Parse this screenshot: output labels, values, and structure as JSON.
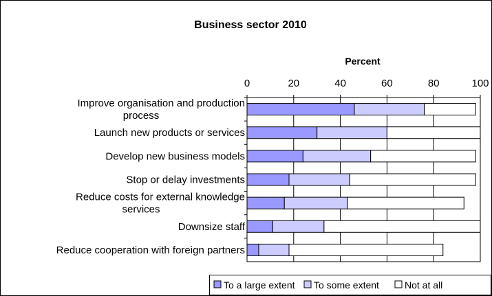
{
  "chart_data": {
    "type": "bar",
    "orientation": "horizontal",
    "stacked": true,
    "title": "Business sector 2010",
    "xlabel": "Percent",
    "ylabel": "",
    "xlim": [
      0,
      100
    ],
    "xticks": [
      0,
      20,
      40,
      60,
      80,
      100
    ],
    "grid": true,
    "legend_position": "bottom-right",
    "categories": [
      "Improve organisation and production process",
      "Launch new products or services",
      "Develop new business models",
      "Stop or delay investments",
      "Reduce costs for external knowledge services",
      "Downsize staff",
      "Reduce cooperation with foreign partners"
    ],
    "category_lines": [
      [
        "Improve organisation and production",
        "process"
      ],
      [
        "Launch new products or services"
      ],
      [
        "Develop new business models"
      ],
      [
        "Stop or delay investments"
      ],
      [
        "Reduce costs for external knowledge",
        "services"
      ],
      [
        "Downsize staff"
      ],
      [
        "Reduce cooperation with foreign partners"
      ]
    ],
    "series": [
      {
        "name": "To a large extent",
        "color": "#9999ff",
        "values": [
          46,
          30,
          24,
          18,
          16,
          11,
          5
        ]
      },
      {
        "name": "To some extent",
        "color": "#ccccff",
        "values": [
          30,
          30,
          29,
          26,
          27,
          22,
          13
        ]
      },
      {
        "name": "Not at all",
        "color": "#ffffff",
        "values": [
          22,
          40,
          45,
          54,
          50,
          67,
          66
        ]
      }
    ]
  }
}
